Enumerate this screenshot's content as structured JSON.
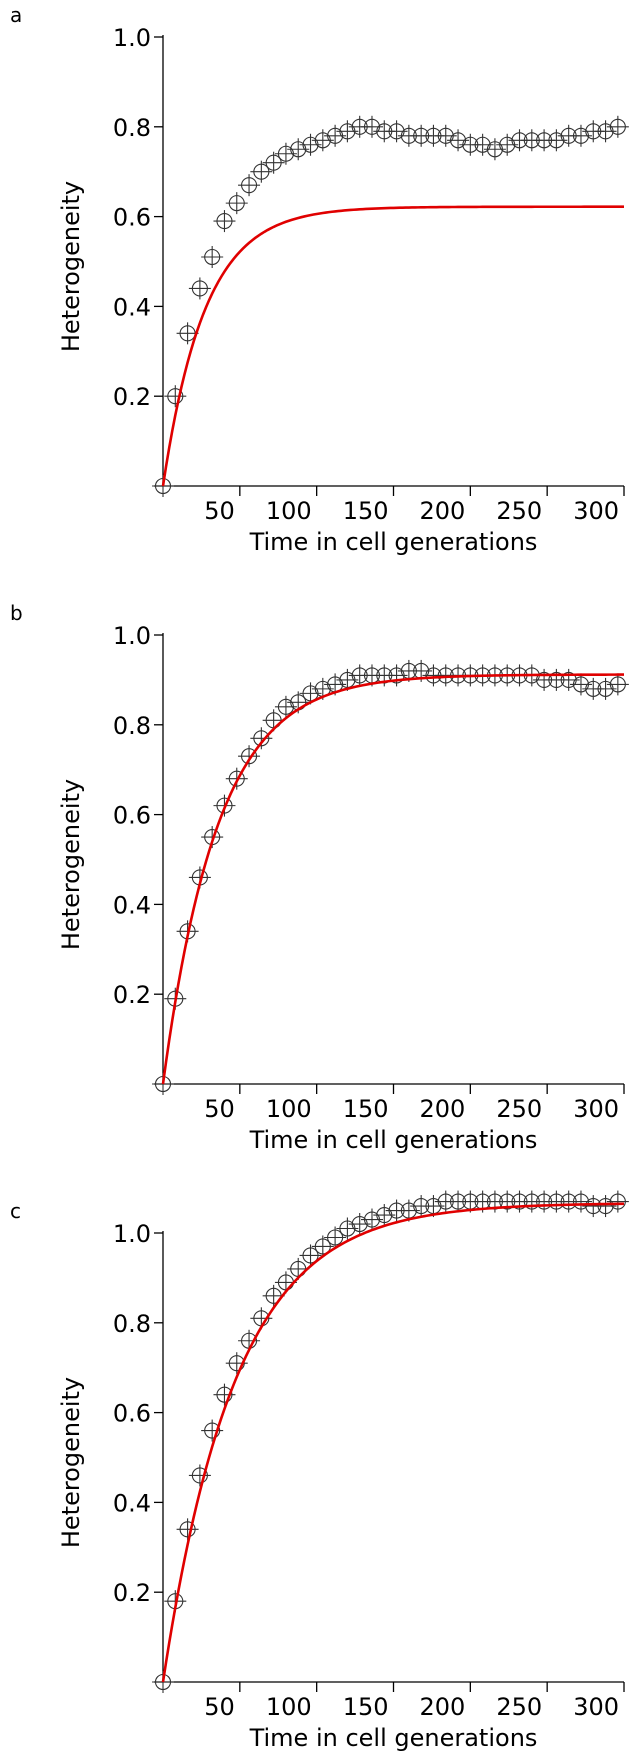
{
  "chart_data": [
    {
      "type": "scatter",
      "panel_label": "a",
      "xlabel": "Time in cell generations",
      "ylabel": "Heterogeneity",
      "xlim": [
        0,
        300
      ],
      "ylim": [
        0,
        1.0
      ],
      "x_ticks": [
        50,
        100,
        150,
        200,
        250,
        300
      ],
      "x_tick_labels": [
        "50",
        "100",
        "150",
        "200",
        "250",
        "300"
      ],
      "y_ticks": [
        0.2,
        0.4,
        0.6,
        0.8,
        1.0
      ],
      "y_tick_labels": [
        "0.2",
        "0.4",
        "0.6",
        "0.8",
        "1.0"
      ],
      "fit_color": "#e00000",
      "fit": {
        "plateau": 0.622,
        "rate": 0.0365
      },
      "series": [
        {
          "x": [
            0,
            8,
            16,
            24,
            32,
            40,
            48,
            56,
            64,
            72,
            80,
            88,
            96,
            104,
            112,
            120,
            128,
            136,
            144,
            152,
            160,
            168,
            176,
            184,
            192,
            200,
            208,
            216,
            224,
            232,
            240,
            248,
            256,
            264,
            272,
            280,
            288,
            296
          ],
          "y": [
            0.0,
            0.2,
            0.34,
            0.44,
            0.51,
            0.59,
            0.63,
            0.67,
            0.7,
            0.72,
            0.74,
            0.75,
            0.76,
            0.77,
            0.78,
            0.79,
            0.8,
            0.8,
            0.79,
            0.79,
            0.78,
            0.78,
            0.78,
            0.78,
            0.77,
            0.76,
            0.76,
            0.75,
            0.76,
            0.77,
            0.77,
            0.77,
            0.77,
            0.78,
            0.78,
            0.79,
            0.79,
            0.8
          ]
        }
      ]
    },
    {
      "type": "scatter",
      "panel_label": "b",
      "xlabel": "Time in cell generations",
      "ylabel": "Heterogeneity",
      "xlim": [
        0,
        300
      ],
      "ylim": [
        0,
        1.0
      ],
      "x_ticks": [
        50,
        100,
        150,
        200,
        250,
        300
      ],
      "x_tick_labels": [
        "50",
        "100",
        "150",
        "200",
        "250",
        "300"
      ],
      "y_ticks": [
        0.2,
        0.4,
        0.6,
        0.8,
        1.0
      ],
      "y_tick_labels": [
        "0.2",
        "0.4",
        "0.6",
        "0.8",
        "1.0"
      ],
      "fit_color": "#e00000",
      "fit": {
        "plateau": 0.912,
        "rate": 0.028
      },
      "series": [
        {
          "x": [
            0,
            8,
            16,
            24,
            32,
            40,
            48,
            56,
            64,
            72,
            80,
            88,
            96,
            104,
            112,
            120,
            128,
            136,
            144,
            152,
            160,
            168,
            176,
            184,
            192,
            200,
            208,
            216,
            224,
            232,
            240,
            248,
            256,
            264,
            272,
            280,
            288,
            296
          ],
          "y": [
            0.0,
            0.19,
            0.34,
            0.46,
            0.55,
            0.62,
            0.68,
            0.73,
            0.77,
            0.81,
            0.84,
            0.85,
            0.87,
            0.88,
            0.89,
            0.9,
            0.91,
            0.91,
            0.91,
            0.91,
            0.92,
            0.92,
            0.91,
            0.91,
            0.91,
            0.91,
            0.91,
            0.91,
            0.91,
            0.91,
            0.91,
            0.9,
            0.9,
            0.9,
            0.89,
            0.88,
            0.88,
            0.89
          ]
        }
      ]
    },
    {
      "type": "scatter",
      "panel_label": "c",
      "xlabel": "Time in cell generations",
      "ylabel": "Heterogeneity",
      "xlim": [
        0,
        300
      ],
      "ylim": [
        0,
        1.0
      ],
      "x_ticks": [
        50,
        100,
        150,
        200,
        250,
        300
      ],
      "x_tick_labels": [
        "50",
        "100",
        "150",
        "200",
        "250",
        "300"
      ],
      "y_ticks": [
        0.2,
        0.4,
        0.6,
        0.8,
        1.0
      ],
      "y_tick_labels": [
        "0.2",
        "0.4",
        "0.6",
        "0.8",
        "1.0"
      ],
      "fit_color": "#e00000",
      "fit": {
        "plateau": 1.067,
        "rate": 0.0211
      },
      "series": [
        {
          "x": [
            0,
            8,
            16,
            24,
            32,
            40,
            48,
            56,
            64,
            72,
            80,
            88,
            96,
            104,
            112,
            120,
            128,
            136,
            144,
            152,
            160,
            168,
            176,
            184,
            192,
            200,
            208,
            216,
            224,
            232,
            240,
            248,
            256,
            264,
            272,
            280,
            288,
            296
          ],
          "y": [
            0.0,
            0.18,
            0.34,
            0.46,
            0.56,
            0.64,
            0.71,
            0.76,
            0.81,
            0.86,
            0.89,
            0.92,
            0.95,
            0.97,
            0.99,
            1.01,
            1.02,
            1.03,
            1.04,
            1.05,
            1.05,
            1.06,
            1.06,
            1.07,
            1.07,
            1.07,
            1.07,
            1.07,
            1.07,
            1.07,
            1.07,
            1.07,
            1.07,
            1.07,
            1.07,
            1.06,
            1.06,
            1.07
          ]
        }
      ]
    }
  ]
}
